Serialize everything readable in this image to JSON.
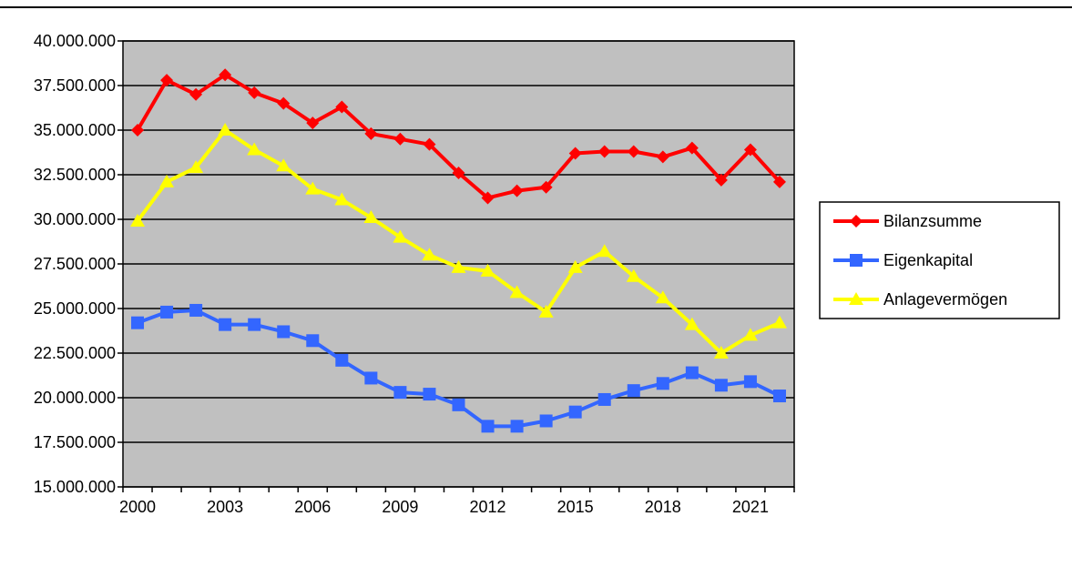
{
  "chart_data": {
    "type": "line",
    "categories": [
      "2000",
      null,
      null,
      "2003",
      null,
      null,
      "2006",
      null,
      null,
      "2009",
      null,
      null,
      "2012",
      null,
      null,
      "2015",
      null,
      null,
      "2018",
      null,
      null,
      "2021",
      null
    ],
    "series": [
      {
        "name": "Bilanzsumme",
        "color": "#ff0000",
        "marker": "diamond",
        "values": [
          35000000,
          37800000,
          37000000,
          38100000,
          37100000,
          36500000,
          35400000,
          36300000,
          34800000,
          34500000,
          34200000,
          32600000,
          31200000,
          31600000,
          31800000,
          33700000,
          33800000,
          33800000,
          33500000,
          34000000,
          32200000,
          33900000,
          32100000
        ]
      },
      {
        "name": "Eigenkapital",
        "color": "#3366ff",
        "marker": "square",
        "values": [
          24200000,
          24800000,
          24900000,
          24100000,
          24100000,
          23700000,
          23200000,
          22100000,
          21100000,
          20300000,
          20200000,
          19600000,
          18400000,
          18400000,
          18700000,
          19200000,
          19900000,
          20400000,
          20800000,
          21400000,
          20700000,
          20900000,
          20100000
        ]
      },
      {
        "name": "Anlagevermögen",
        "color": "#ffff00",
        "marker": "triangle",
        "values": [
          29900000,
          32100000,
          32900000,
          35000000,
          33900000,
          33000000,
          31700000,
          31100000,
          30100000,
          29000000,
          28000000,
          27300000,
          27100000,
          25900000,
          24800000,
          27300000,
          28200000,
          26800000,
          25600000,
          24100000,
          22500000,
          23500000,
          24200000
        ]
      }
    ],
    "ylim": [
      15000000,
      40000000
    ],
    "yticks": [
      {
        "value": 15000000,
        "label": "15.000.000"
      },
      {
        "value": 17500000,
        "label": "17.500.000"
      },
      {
        "value": 20000000,
        "label": "20.000.000"
      },
      {
        "value": 22500000,
        "label": "22.500.000"
      },
      {
        "value": 25000000,
        "label": "25.000.000"
      },
      {
        "value": 27500000,
        "label": "27.500.000"
      },
      {
        "value": 30000000,
        "label": "30.000.000"
      },
      {
        "value": 32500000,
        "label": "32.500.000"
      },
      {
        "value": 35000000,
        "label": "35.000.000"
      },
      {
        "value": 37500000,
        "label": "37.500.000"
      },
      {
        "value": 40000000,
        "label": "40.000.000"
      }
    ],
    "grid": true,
    "plot_background": "#c0c0c0",
    "legend": "right"
  }
}
